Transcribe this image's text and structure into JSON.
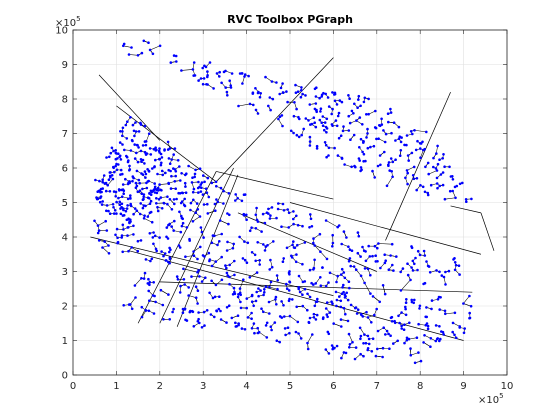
{
  "chart_data": {
    "type": "scatter",
    "title": "RVC Toolbox PGraph",
    "xlabel": "",
    "ylabel": "",
    "xlim": [
      0,
      1000000
    ],
    "ylim": [
      0,
      1000000
    ],
    "x_ticks": [
      "0",
      "1",
      "2",
      "3",
      "4",
      "5",
      "6",
      "7",
      "8",
      "9",
      "10"
    ],
    "y_ticks": [
      "0",
      "1",
      "2",
      "3",
      "4",
      "5",
      "6",
      "7",
      "8",
      "9",
      "10"
    ],
    "x_multiplier": "×10",
    "x_exponent": "5",
    "y_multiplier": "×10",
    "y_exponent": "5",
    "grid": true,
    "colors": {
      "node": "#0000ff",
      "edge": "#000000",
      "grid": "#dfdfdf",
      "axis": "#262626"
    },
    "series": [
      {
        "description": "road-network graph: blue dot nodes connected by black edges",
        "clusters": [
          {
            "region": [
              [
                130000,
                990000
              ],
              [
                330000,
                900000
              ],
              [
                420000,
                870000
              ],
              [
                700000,
                800000
              ],
              [
                820000,
                710000
              ],
              [
                940000,
                480000
              ],
              [
                900000,
                490000
              ],
              [
                780000,
                520000
              ],
              [
                640000,
                590000
              ],
              [
                430000,
                740000
              ],
              [
                220000,
                900000
              ],
              [
                100000,
                930000
              ]
            ],
            "n": 330
          },
          {
            "region": [
              [
                50000,
                570000
              ],
              [
                130000,
                760000
              ],
              [
                230000,
                670000
              ],
              [
                330000,
                560000
              ],
              [
                260000,
                490000
              ],
              [
                130000,
                440000
              ],
              [
                60000,
                470000
              ]
            ],
            "n": 260
          },
          {
            "region": [
              [
                40000,
                390000
              ],
              [
                60000,
                570000
              ],
              [
                330000,
                560000
              ],
              [
                500000,
                490000
              ],
              [
                720000,
                390000
              ],
              [
                900000,
                340000
              ],
              [
                900000,
                270000
              ],
              [
                700000,
                230000
              ],
              [
                500000,
                260000
              ],
              [
                260000,
                300000
              ],
              [
                100000,
                330000
              ]
            ],
            "n": 420
          },
          {
            "region": [
              [
                100000,
                190000
              ],
              [
                150000,
                300000
              ],
              [
                400000,
                280000
              ],
              [
                700000,
                230000
              ],
              [
                920000,
                230000
              ],
              [
                910000,
                100000
              ],
              [
                800000,
                30000
              ],
              [
                600000,
                50000
              ],
              [
                400000,
                120000
              ],
              [
                200000,
                150000
              ]
            ],
            "n": 360
          }
        ],
        "long_edges": [
          [
            [
              60000,
              870000
            ],
            [
              200000,
              680000
            ]
          ],
          [
            [
              100000,
              780000
            ],
            [
              330000,
              560000
            ]
          ],
          [
            [
              150000,
              150000
            ],
            [
              330000,
              590000
            ]
          ],
          [
            [
              200000,
              150000
            ],
            [
              370000,
              600000
            ]
          ],
          [
            [
              240000,
              140000
            ],
            [
              380000,
              580000
            ]
          ],
          [
            [
              330000,
              560000
            ],
            [
              600000,
              920000
            ]
          ],
          [
            [
              40000,
              400000
            ],
            [
              600000,
              230000
            ]
          ],
          [
            [
              130000,
              360000
            ],
            [
              900000,
              100000
            ]
          ],
          [
            [
              380000,
              470000
            ],
            [
              700000,
              300000
            ]
          ],
          [
            [
              500000,
              500000
            ],
            [
              940000,
              350000
            ]
          ],
          [
            [
              720000,
              390000
            ],
            [
              870000,
              820000
            ]
          ],
          [
            [
              870000,
              490000
            ],
            [
              940000,
              470000
            ]
          ],
          [
            [
              940000,
              470000
            ],
            [
              970000,
              360000
            ]
          ],
          [
            [
              200000,
              270000
            ],
            [
              920000,
              240000
            ]
          ],
          [
            [
              330000,
              590000
            ],
            [
              600000,
              510000
            ]
          ]
        ]
      }
    ]
  }
}
